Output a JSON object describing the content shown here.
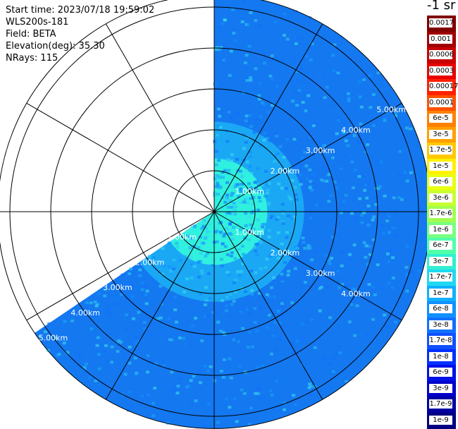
{
  "info": {
    "start_time": "Start time: 2023/07/18 19:59:02",
    "instrument": "WLS200s-181",
    "field": "Field: BETA",
    "elevation": "Elevation(deg): 35.30",
    "nrays": "NRays: 115"
  },
  "plot": {
    "range_rings_km": [
      1,
      2,
      3,
      4,
      5
    ],
    "ring_label_suffix": "km",
    "ring_labels_upper_right": [
      "1.00km",
      "2.00km",
      "3.00km",
      "4.00km",
      "5.00km"
    ],
    "ring_labels_lower_right": [
      "1.00km",
      "2.00km",
      "3.00km",
      "4.00km"
    ],
    "ring_labels_lower_left": [
      "1.00km",
      "2.00km",
      "3.00km",
      "4.00km",
      "5.00km"
    ],
    "data_sector_azimuth_deg": [
      0,
      236
    ],
    "spoke_spacing_deg": 30,
    "colors": {
      "inner": "#30f0e0",
      "middle": "#1aa8f5",
      "outer": "#1478f0",
      "grid": "#000000",
      "label": "#ffffff"
    }
  },
  "colorbar": {
    "title": "-1 sr",
    "labels": [
      "0.0017",
      "0.001",
      "0.0006",
      "0.0003",
      "0.00017",
      "0.0001",
      "6e-5",
      "3e-5",
      "1.7e-5",
      "1e-5",
      "6e-6",
      "3e-6",
      "1.7e-6",
      "1e-6",
      "6e-7",
      "3e-7",
      "1.7e-7",
      "1e-7",
      "6e-8",
      "3e-8",
      "1.7e-8",
      "1e-8",
      "6e-9",
      "3e-9",
      "1.7e-9",
      "1e-9"
    ],
    "colors": [
      "#800000",
      "#a00000",
      "#c80000",
      "#e80000",
      "#ff2000",
      "#ff5000",
      "#ff8000",
      "#ffa000",
      "#ffc800",
      "#fff000",
      "#e8ff10",
      "#c8ff30",
      "#a0ff50",
      "#78ff80",
      "#50ffa8",
      "#30f0d0",
      "#20d8f0",
      "#10b0ff",
      "#1090ff",
      "#1070ff",
      "#1050ff",
      "#0030ff",
      "#0010e8",
      "#0000c8",
      "#0000a0",
      "#000080"
    ]
  }
}
